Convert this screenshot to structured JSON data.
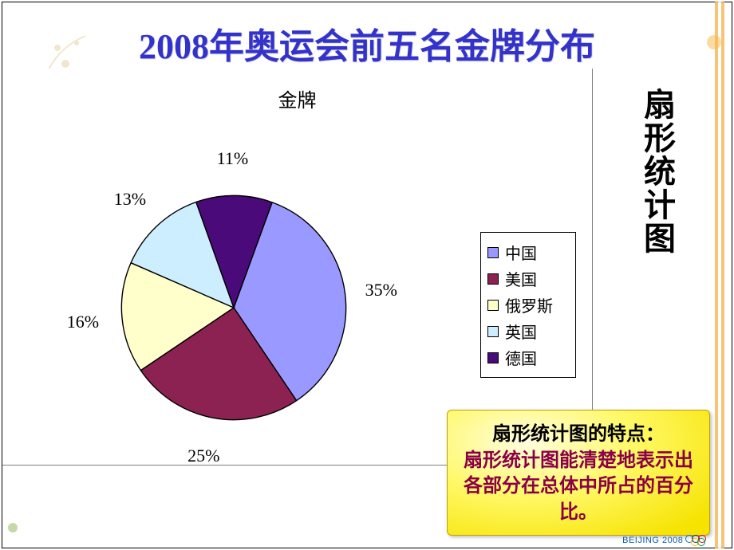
{
  "title": "2008年奥运会前五名金牌分布",
  "chart": {
    "type": "pie",
    "title": "金牌",
    "background_color": "#ffffff",
    "slice_border_color": "#000000",
    "label_fontsize": 22,
    "title_fontsize": 24,
    "slices": [
      {
        "name": "中国",
        "value": 35,
        "label": "35%",
        "color": "#9999ff"
      },
      {
        "name": "美国",
        "value": 25,
        "label": "25%",
        "color": "#8b2252"
      },
      {
        "name": "俄罗斯",
        "value": 16,
        "label": "16%",
        "color": "#ffffcc"
      },
      {
        "name": "英国",
        "value": 13,
        "label": "13%",
        "color": "#cceeff"
      },
      {
        "name": "德国",
        "value": 11,
        "label": "11%",
        "color": "#4a0a7a"
      }
    ],
    "start_angle_deg": -70,
    "legend": {
      "position": "right",
      "border_color": "#000000",
      "items": [
        "中国",
        "美国",
        "俄罗斯",
        "英国",
        "德国"
      ]
    }
  },
  "side_title": "扇形统计图",
  "callout": {
    "heading": "扇形统计图的特点：",
    "body": "扇形统计图能清楚地表示出各部分在总体中所占的百分比。"
  },
  "footer_logo_text": "BEIJING 2008"
}
